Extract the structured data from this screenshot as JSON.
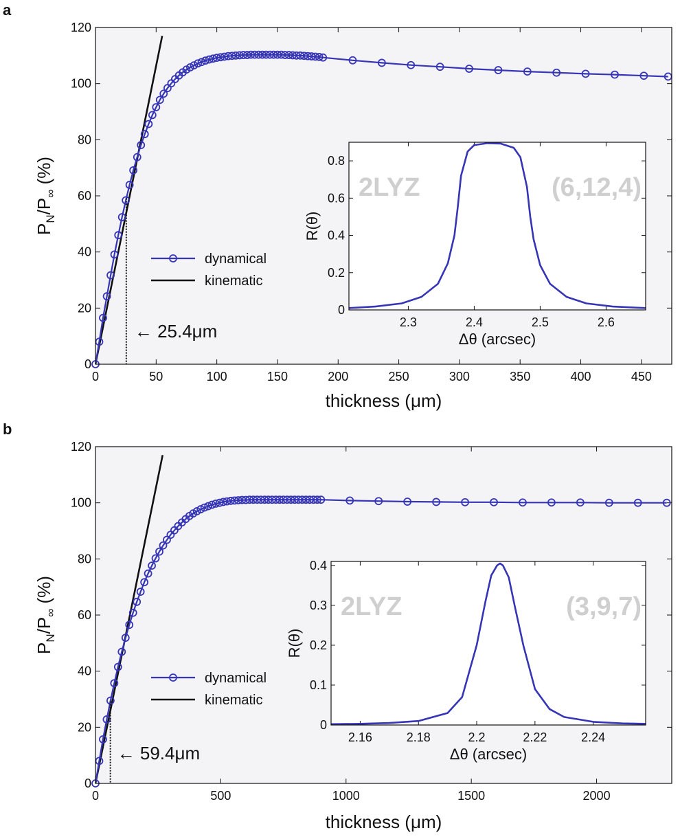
{
  "chart_data": [
    {
      "panel": "a",
      "type": "line",
      "xlabel_main": "thickness (",
      "xlabel_unit": "μm",
      "xlabel_end": ")",
      "ylabel_base": "P",
      "ylabel_sub1": "N",
      "ylabel_mid": "/P",
      "ylabel_sub2": "∞",
      "ylabel_end": " (%)",
      "xlim": [
        0,
        475
      ],
      "ylim": [
        0,
        120
      ],
      "xticks": [
        0,
        50,
        100,
        150,
        200,
        250,
        300,
        350,
        400,
        450
      ],
      "yticks": [
        0,
        20,
        40,
        60,
        80,
        100,
        120
      ],
      "series": [
        {
          "name": "dynamical",
          "color": "#3535b5",
          "marker": "circle",
          "x": [
            0,
            3.1,
            6.2,
            9.4,
            12.5,
            15.6,
            18.8,
            21.9,
            25,
            28.1,
            31.2,
            34.4,
            37.5,
            40.6,
            43.8,
            46.9,
            50,
            53.1,
            56.2,
            59.4,
            62.5,
            65.6,
            68.8,
            71.9,
            75,
            78.1,
            81.2,
            84.4,
            87.5,
            90.6,
            93.8,
            96.9,
            100,
            103.1,
            106.2,
            109.4,
            112.5,
            115.6,
            118.8,
            121.9,
            125,
            128.1,
            131.2,
            134.4,
            137.5,
            140.6,
            143.8,
            146.9,
            150,
            153.1,
            156.2,
            159.4,
            162.5,
            165.6,
            168.8,
            171.9,
            175,
            178.1,
            181.2,
            184.4,
            187.5,
            212,
            236,
            260,
            284,
            308,
            332,
            356,
            380,
            404,
            428,
            452,
            472
          ],
          "y": [
            0,
            8,
            16.5,
            24.2,
            31.7,
            39.1,
            46,
            52.4,
            58.4,
            63.9,
            69.1,
            73.8,
            78.1,
            82,
            85.6,
            88.8,
            91.6,
            94.2,
            96.4,
            98.4,
            100.1,
            101.6,
            102.9,
            104,
            105,
            105.8,
            106.5,
            107.2,
            107.7,
            108.2,
            108.6,
            108.9,
            109.2,
            109.4,
            109.6,
            109.8,
            109.9,
            110,
            110.1,
            110.2,
            110.2,
            110.3,
            110.3,
            110.3,
            110.3,
            110.3,
            110.3,
            110.3,
            110.3,
            110.3,
            110.2,
            110.2,
            110.1,
            110,
            110,
            109.9,
            109.8,
            109.7,
            109.6,
            109.5,
            109.3,
            108.3,
            107.4,
            106.6,
            106,
            105.3,
            104.8,
            104.3,
            103.9,
            103.5,
            103.2,
            102.8,
            102.5
          ]
        },
        {
          "name": "kinematic",
          "color": "#111111",
          "x": [
            0,
            55
          ],
          "y": [
            0,
            117
          ]
        }
      ],
      "annotation": {
        "text": "← 25.4μm",
        "x": 25.4
      },
      "legend": "left-center",
      "inset": {
        "xlabel": "Δθ (arcsec)",
        "ylabel": "R(θ)",
        "xlim": [
          2.21,
          2.66
        ],
        "ylim": [
          0,
          0.9
        ],
        "xticks": [
          "2.3",
          "2.4",
          "2.5",
          "2.6"
        ],
        "yticks": [
          "0",
          "0.2",
          "0.4",
          "0.6",
          "0.8"
        ],
        "label_left": "2LYZ",
        "label_right": "(6,12,4)",
        "x": [
          2.21,
          2.25,
          2.29,
          2.32,
          2.345,
          2.36,
          2.37,
          2.375,
          2.38,
          2.39,
          2.4,
          2.42,
          2.44,
          2.46,
          2.47,
          2.48,
          2.485,
          2.49,
          2.5,
          2.515,
          2.54,
          2.57,
          2.61,
          2.66
        ],
        "y": [
          0.01,
          0.018,
          0.035,
          0.07,
          0.14,
          0.25,
          0.4,
          0.55,
          0.72,
          0.85,
          0.885,
          0.895,
          0.893,
          0.87,
          0.82,
          0.66,
          0.5,
          0.38,
          0.24,
          0.14,
          0.07,
          0.035,
          0.018,
          0.01
        ]
      }
    },
    {
      "panel": "b",
      "type": "line",
      "xlabel_main": "thickness (",
      "xlabel_unit": "μm",
      "xlabel_end": ")",
      "ylabel_base": "P",
      "ylabel_sub1": "N",
      "ylabel_mid": "/P",
      "ylabel_sub2": "∞",
      "ylabel_end": " (%)",
      "xlim": [
        0,
        2300
      ],
      "ylim": [
        0,
        120
      ],
      "xticks": [
        0,
        500,
        1000,
        1500,
        2000
      ],
      "yticks": [
        0,
        20,
        40,
        60,
        80,
        100,
        120
      ],
      "series": [
        {
          "name": "dynamical",
          "color": "#3535b5",
          "marker": "circle",
          "x": [
            0,
            15,
            30,
            45,
            60,
            75,
            90,
            105,
            120,
            135,
            150,
            165,
            180,
            195,
            210,
            225,
            240,
            255,
            270,
            285,
            300,
            315,
            330,
            345,
            360,
            375,
            390,
            405,
            420,
            435,
            450,
            465,
            480,
            495,
            510,
            525,
            540,
            555,
            570,
            585,
            600,
            615,
            630,
            645,
            660,
            675,
            690,
            705,
            720,
            735,
            750,
            765,
            780,
            795,
            810,
            825,
            840,
            855,
            870,
            885,
            900,
            1015,
            1130,
            1245,
            1360,
            1475,
            1590,
            1705,
            1820,
            1935,
            2050,
            2165,
            2280
          ],
          "y": [
            0,
            8,
            15.7,
            22.8,
            29.5,
            35.7,
            41.5,
            46.9,
            51.9,
            56.5,
            60.8,
            64.7,
            68.3,
            71.7,
            74.8,
            77.6,
            80.2,
            82.6,
            84.8,
            86.8,
            88.6,
            90.2,
            91.7,
            93,
            94.2,
            95.3,
            96.2,
            97,
            97.7,
            98.3,
            98.8,
            99.3,
            99.7,
            100,
            100.3,
            100.5,
            100.7,
            100.8,
            100.9,
            101,
            101,
            101.1,
            101.1,
            101.1,
            101.1,
            101.1,
            101.1,
            101.1,
            101.1,
            101.1,
            101.1,
            101.1,
            101.1,
            101.1,
            101.1,
            101.1,
            101.1,
            101.1,
            101.1,
            101.1,
            101.1,
            100.8,
            100.6,
            100.4,
            100.3,
            100.2,
            100.2,
            100.1,
            100.1,
            100.1,
            100,
            100,
            100
          ]
        },
        {
          "name": "kinematic",
          "color": "#111111",
          "x": [
            0,
            268
          ],
          "y": [
            0,
            117
          ]
        }
      ],
      "annotation": {
        "text": "← 59.4μm",
        "x": 59.4
      },
      "legend": "left-center",
      "inset": {
        "xlabel": "Δθ (arcsec)",
        "ylabel": "R(θ)",
        "xlim": [
          2.15,
          2.258
        ],
        "ylim": [
          0,
          0.41
        ],
        "xticks": [
          "2.16",
          "2.18",
          "2.2",
          "2.22",
          "2.24"
        ],
        "yticks": [
          "0",
          "0.1",
          "0.2",
          "0.3",
          "0.4"
        ],
        "label_left": "2LYZ",
        "label_right": "(3,9,7)",
        "x": [
          2.15,
          2.16,
          2.17,
          2.18,
          2.19,
          2.195,
          2.2,
          2.203,
          2.205,
          2.207,
          2.208,
          2.209,
          2.211,
          2.213,
          2.216,
          2.22,
          2.225,
          2.23,
          2.24,
          2.25,
          2.258
        ],
        "y": [
          0.002,
          0.003,
          0.005,
          0.01,
          0.03,
          0.07,
          0.2,
          0.31,
          0.375,
          0.4,
          0.405,
          0.4,
          0.37,
          0.3,
          0.2,
          0.09,
          0.04,
          0.02,
          0.008,
          0.004,
          0.003
        ]
      }
    }
  ],
  "figure": {
    "panel_labels": [
      "a",
      "b"
    ],
    "background_color": "#f4f3f6",
    "series_color": "#3535b5",
    "kinematic_color": "#111111",
    "watermark_color": "#cfcfcf"
  }
}
